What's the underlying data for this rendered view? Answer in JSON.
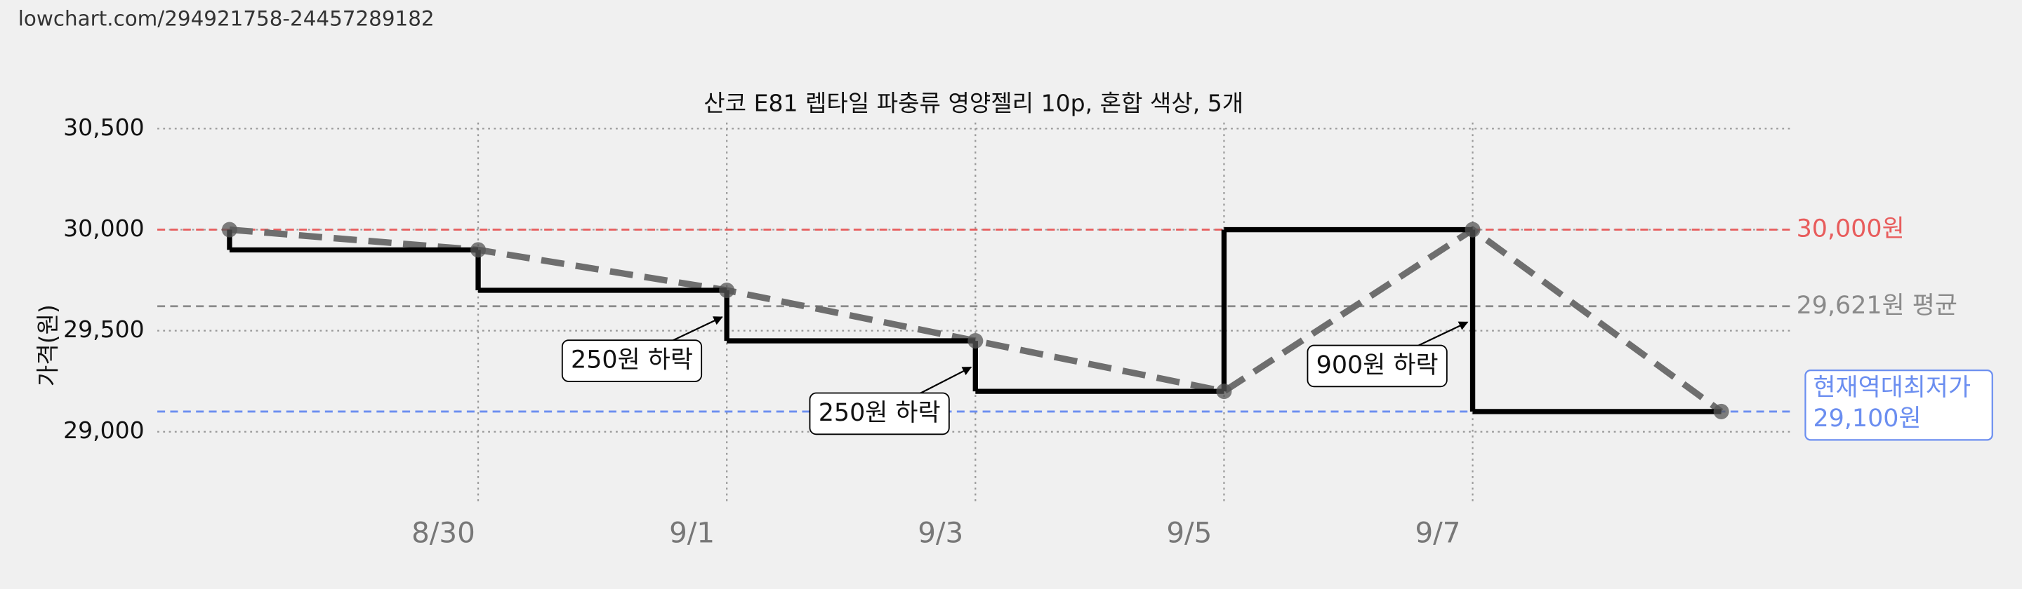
{
  "url": "lowchart.com/294921758-24457289182",
  "chart_data": {
    "type": "line",
    "title": "산코 E81 렙타일 파충류 영양젤리 10p, 혼합 색상, 5개",
    "ylabel": "가격(원)",
    "categories": [
      null,
      "8/30",
      "9/1",
      "9/3",
      "9/5",
      "9/7",
      null
    ],
    "values": [
      30000,
      29900,
      29700,
      29450,
      29200,
      30000,
      29100
    ],
    "line_color": "#6e6e6e",
    "step_color": "#000000",
    "ylim": [
      28650,
      30530
    ],
    "yticks": [
      {
        "value": 29000,
        "label": "29,000"
      },
      {
        "value": 29500,
        "label": "29,500"
      },
      {
        "value": 30000,
        "label": "30,000"
      },
      {
        "value": 30500,
        "label": "30,500"
      }
    ],
    "grid": true,
    "ref_lines": [
      {
        "value": 30000,
        "label": [
          "30,000원"
        ],
        "color": "#e85c5c"
      },
      {
        "value": 29621,
        "label": [
          "29,621원 평균"
        ],
        "color": "#8a8a8a"
      },
      {
        "value": 29100,
        "label": [
          "현재역대최저가",
          "29,100원"
        ],
        "color": "#6b8ef0",
        "boxed": true
      }
    ],
    "annotations": [
      {
        "text": "250원 하락",
        "index": 2
      },
      {
        "text": "250원 하락",
        "index": 3
      },
      {
        "text": "900원 하락",
        "index": 5
      }
    ]
  }
}
